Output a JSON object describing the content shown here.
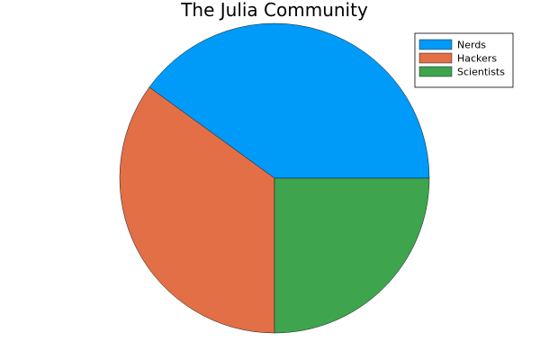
{
  "chart_data": {
    "type": "pie",
    "title": "The Julia Community",
    "categories": [
      "Nerds",
      "Hackers",
      "Scientists"
    ],
    "values": [
      0.4,
      0.35,
      0.25
    ],
    "colors": [
      "#009AF9",
      "#E26F46",
      "#3EA44E"
    ],
    "legend_position": "top-right",
    "grid": false
  }
}
